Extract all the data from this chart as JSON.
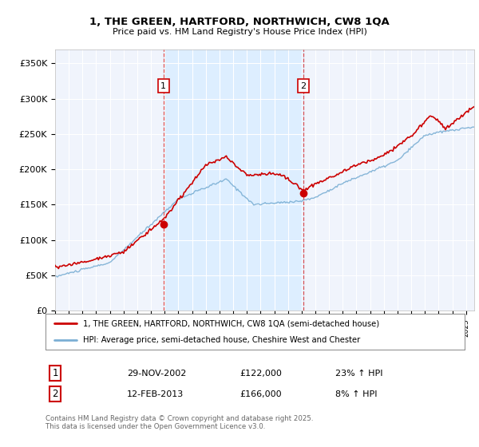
{
  "title_line1": "1, THE GREEN, HARTFORD, NORTHWICH, CW8 1QA",
  "title_line2": "Price paid vs. HM Land Registry's House Price Index (HPI)",
  "ylabel_ticks": [
    "£0",
    "£50K",
    "£100K",
    "£150K",
    "£200K",
    "£250K",
    "£300K",
    "£350K"
  ],
  "ytick_values": [
    0,
    50000,
    100000,
    150000,
    200000,
    250000,
    300000,
    350000
  ],
  "ylim": [
    0,
    370000
  ],
  "xlim_start": 1995.0,
  "xlim_end": 2025.6,
  "legend_line1": "1, THE GREEN, HARTFORD, NORTHWICH, CW8 1QA (semi-detached house)",
  "legend_line2": "HPI: Average price, semi-detached house, Cheshire West and Chester",
  "red_line_color": "#cc0000",
  "blue_line_color": "#7bafd4",
  "vline_color": "#dd4444",
  "shade_color": "#ddeeff",
  "marker1_date": 2002.916,
  "marker1_value": 122000,
  "marker1_label": "1",
  "marker2_date": 2013.12,
  "marker2_value": 166000,
  "marker2_label": "2",
  "table_row1": [
    "1",
    "29-NOV-2002",
    "£122,000",
    "23% ↑ HPI"
  ],
  "table_row2": [
    "2",
    "12-FEB-2013",
    "£166,000",
    "8% ↑ HPI"
  ],
  "footer": "Contains HM Land Registry data © Crown copyright and database right 2025.\nThis data is licensed under the Open Government Licence v3.0.",
  "background_color": "#ffffff",
  "plot_bg_color": "#f0f4fc"
}
